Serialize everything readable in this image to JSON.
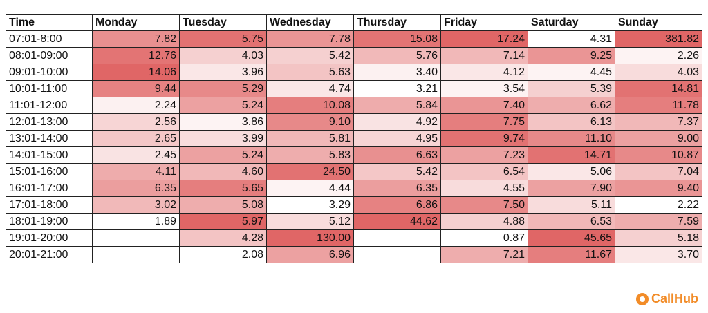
{
  "chart_data": {
    "type": "heatmap",
    "corner_header": "Time",
    "columns": [
      "Monday",
      "Tuesday",
      "Wednesday",
      "Thursday",
      "Friday",
      "Saturday",
      "Sunday"
    ],
    "rows": [
      "07:01-8:00",
      "08:01-09:00",
      "09:01-10:00",
      "10:01-11:00",
      "11:01-12:00",
      "12:01-13:00",
      "13:01-14:00",
      "14:01-15:00",
      "15:01-16:00",
      "16:01-17:00",
      "17:01-18:00",
      "18:01-19:00",
      "19:01-20:00",
      "20:01-21:00"
    ],
    "values": [
      [
        "7.82",
        "5.75",
        "7.78",
        "15.08",
        "17.24",
        "4.31",
        "381.82"
      ],
      [
        "12.76",
        "4.03",
        "5.42",
        "5.76",
        "7.14",
        "9.25",
        "2.26"
      ],
      [
        "14.06",
        "3.96",
        "5.63",
        "3.40",
        "4.12",
        "4.45",
        "4.03"
      ],
      [
        "9.44",
        "5.29",
        "4.74",
        "3.21",
        "3.54",
        "5.39",
        "14.81"
      ],
      [
        "2.24",
        "5.24",
        "10.08",
        "5.84",
        "7.40",
        "6.62",
        "11.78"
      ],
      [
        "2.56",
        "3.86",
        "9.10",
        "4.92",
        "7.75",
        "6.13",
        "7.37"
      ],
      [
        "2.65",
        "3.99",
        "5.81",
        "4.95",
        "9.74",
        "11.10",
        "9.00"
      ],
      [
        "2.45",
        "5.24",
        "5.83",
        "6.63",
        "7.23",
        "14.71",
        "10.87"
      ],
      [
        "4.11",
        "4.60",
        "24.50",
        "5.42",
        "6.54",
        "5.06",
        "7.04"
      ],
      [
        "6.35",
        "5.65",
        "4.44",
        "6.35",
        "4.55",
        "7.90",
        "9.40"
      ],
      [
        "3.02",
        "5.08",
        "3.29",
        "6.86",
        "7.50",
        "5.11",
        "2.22"
      ],
      [
        "1.89",
        "5.97",
        "5.12",
        "44.62",
        "4.88",
        "6.53",
        "7.59"
      ],
      [
        null,
        "4.28",
        "130.00",
        null,
        "0.87",
        "45.65",
        "5.18"
      ],
      [
        null,
        "2.08",
        "6.96",
        null,
        "7.21",
        "11.67",
        "3.70"
      ]
    ],
    "color_scale": "per-column, white (low) to red #e06666 (high)"
  },
  "colors": {
    "high": "#e06666",
    "low": "#ffffff",
    "brand": "#f28c28"
  },
  "logo": {
    "text": "CallHub",
    "icon": "callhub-logo-icon"
  }
}
